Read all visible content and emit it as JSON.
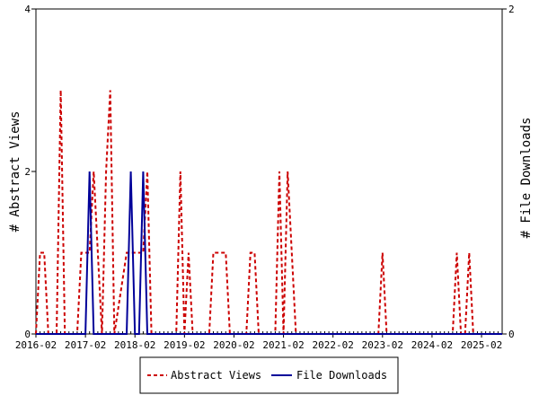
{
  "chart_data": {
    "type": "line",
    "x_start": "2016-02",
    "x_end": "2025-07",
    "x_ticks": [
      "2016-02",
      "2017-02",
      "2018-02",
      "2019-02",
      "2020-02",
      "2021-02",
      "2022-02",
      "2023-02",
      "2024-02",
      "2025-02"
    ],
    "ylabel_left": "# Abstract Views",
    "ylabel_right": "# File Downloads",
    "ylim_left": [
      0,
      4
    ],
    "ylim_right": [
      0,
      2
    ],
    "yticks_left": [
      "0",
      "2",
      "4"
    ],
    "yticks_right": [
      "0",
      "2"
    ],
    "legend_position": "bottom-center",
    "series": [
      {
        "name": "Abstract Views",
        "axis": "left",
        "color": "#cc0000",
        "dash": "dashed",
        "points": [
          [
            "2016-02",
            0
          ],
          [
            "2016-03",
            1
          ],
          [
            "2016-04",
            1
          ],
          [
            "2016-05",
            0
          ],
          [
            "2016-06",
            0
          ],
          [
            "2016-07",
            0
          ],
          [
            "2016-08",
            3
          ],
          [
            "2016-09",
            0
          ],
          [
            "2016-12",
            0
          ],
          [
            "2017-01",
            1
          ],
          [
            "2017-02",
            1
          ],
          [
            "2017-03",
            1
          ],
          [
            "2017-04",
            2
          ],
          [
            "2017-05",
            1
          ],
          [
            "2017-06",
            0
          ],
          [
            "2017-07",
            2
          ],
          [
            "2017-08",
            3
          ],
          [
            "2017-09",
            0
          ],
          [
            "2017-12",
            1
          ],
          [
            "2018-01",
            1
          ],
          [
            "2018-02",
            1
          ],
          [
            "2018-03",
            1
          ],
          [
            "2018-04",
            1
          ],
          [
            "2018-05",
            2
          ],
          [
            "2018-06",
            0
          ],
          [
            "2018-12",
            0
          ],
          [
            "2019-01",
            2
          ],
          [
            "2019-02",
            0
          ],
          [
            "2019-03",
            1
          ],
          [
            "2019-04",
            0
          ],
          [
            "2019-08",
            0
          ],
          [
            "2019-09",
            1
          ],
          [
            "2019-10",
            1
          ],
          [
            "2019-11",
            1
          ],
          [
            "2019-12",
            1
          ],
          [
            "2020-01",
            0
          ],
          [
            "2020-05",
            0
          ],
          [
            "2020-06",
            1
          ],
          [
            "2020-07",
            1
          ],
          [
            "2020-08",
            0
          ],
          [
            "2020-12",
            0
          ],
          [
            "2021-01",
            2
          ],
          [
            "2021-02",
            0
          ],
          [
            "2021-03",
            2
          ],
          [
            "2021-04",
            1
          ],
          [
            "2021-05",
            0
          ],
          [
            "2023-01",
            0
          ],
          [
            "2023-02",
            1
          ],
          [
            "2023-03",
            0
          ],
          [
            "2024-07",
            0
          ],
          [
            "2024-08",
            1
          ],
          [
            "2024-09",
            0
          ],
          [
            "2024-10",
            0
          ],
          [
            "2024-11",
            1
          ],
          [
            "2024-12",
            0
          ]
        ]
      },
      {
        "name": "File Downloads",
        "axis": "right",
        "color": "#000099",
        "dash": "solid",
        "points": [
          [
            "2016-02",
            0
          ],
          [
            "2017-02",
            0
          ],
          [
            "2017-03",
            1
          ],
          [
            "2017-04",
            0
          ],
          [
            "2017-12",
            0
          ],
          [
            "2018-01",
            1
          ],
          [
            "2018-02",
            0
          ],
          [
            "2018-03",
            0
          ],
          [
            "2018-04",
            1
          ],
          [
            "2018-05",
            0
          ],
          [
            "2025-07",
            0
          ]
        ]
      }
    ]
  }
}
